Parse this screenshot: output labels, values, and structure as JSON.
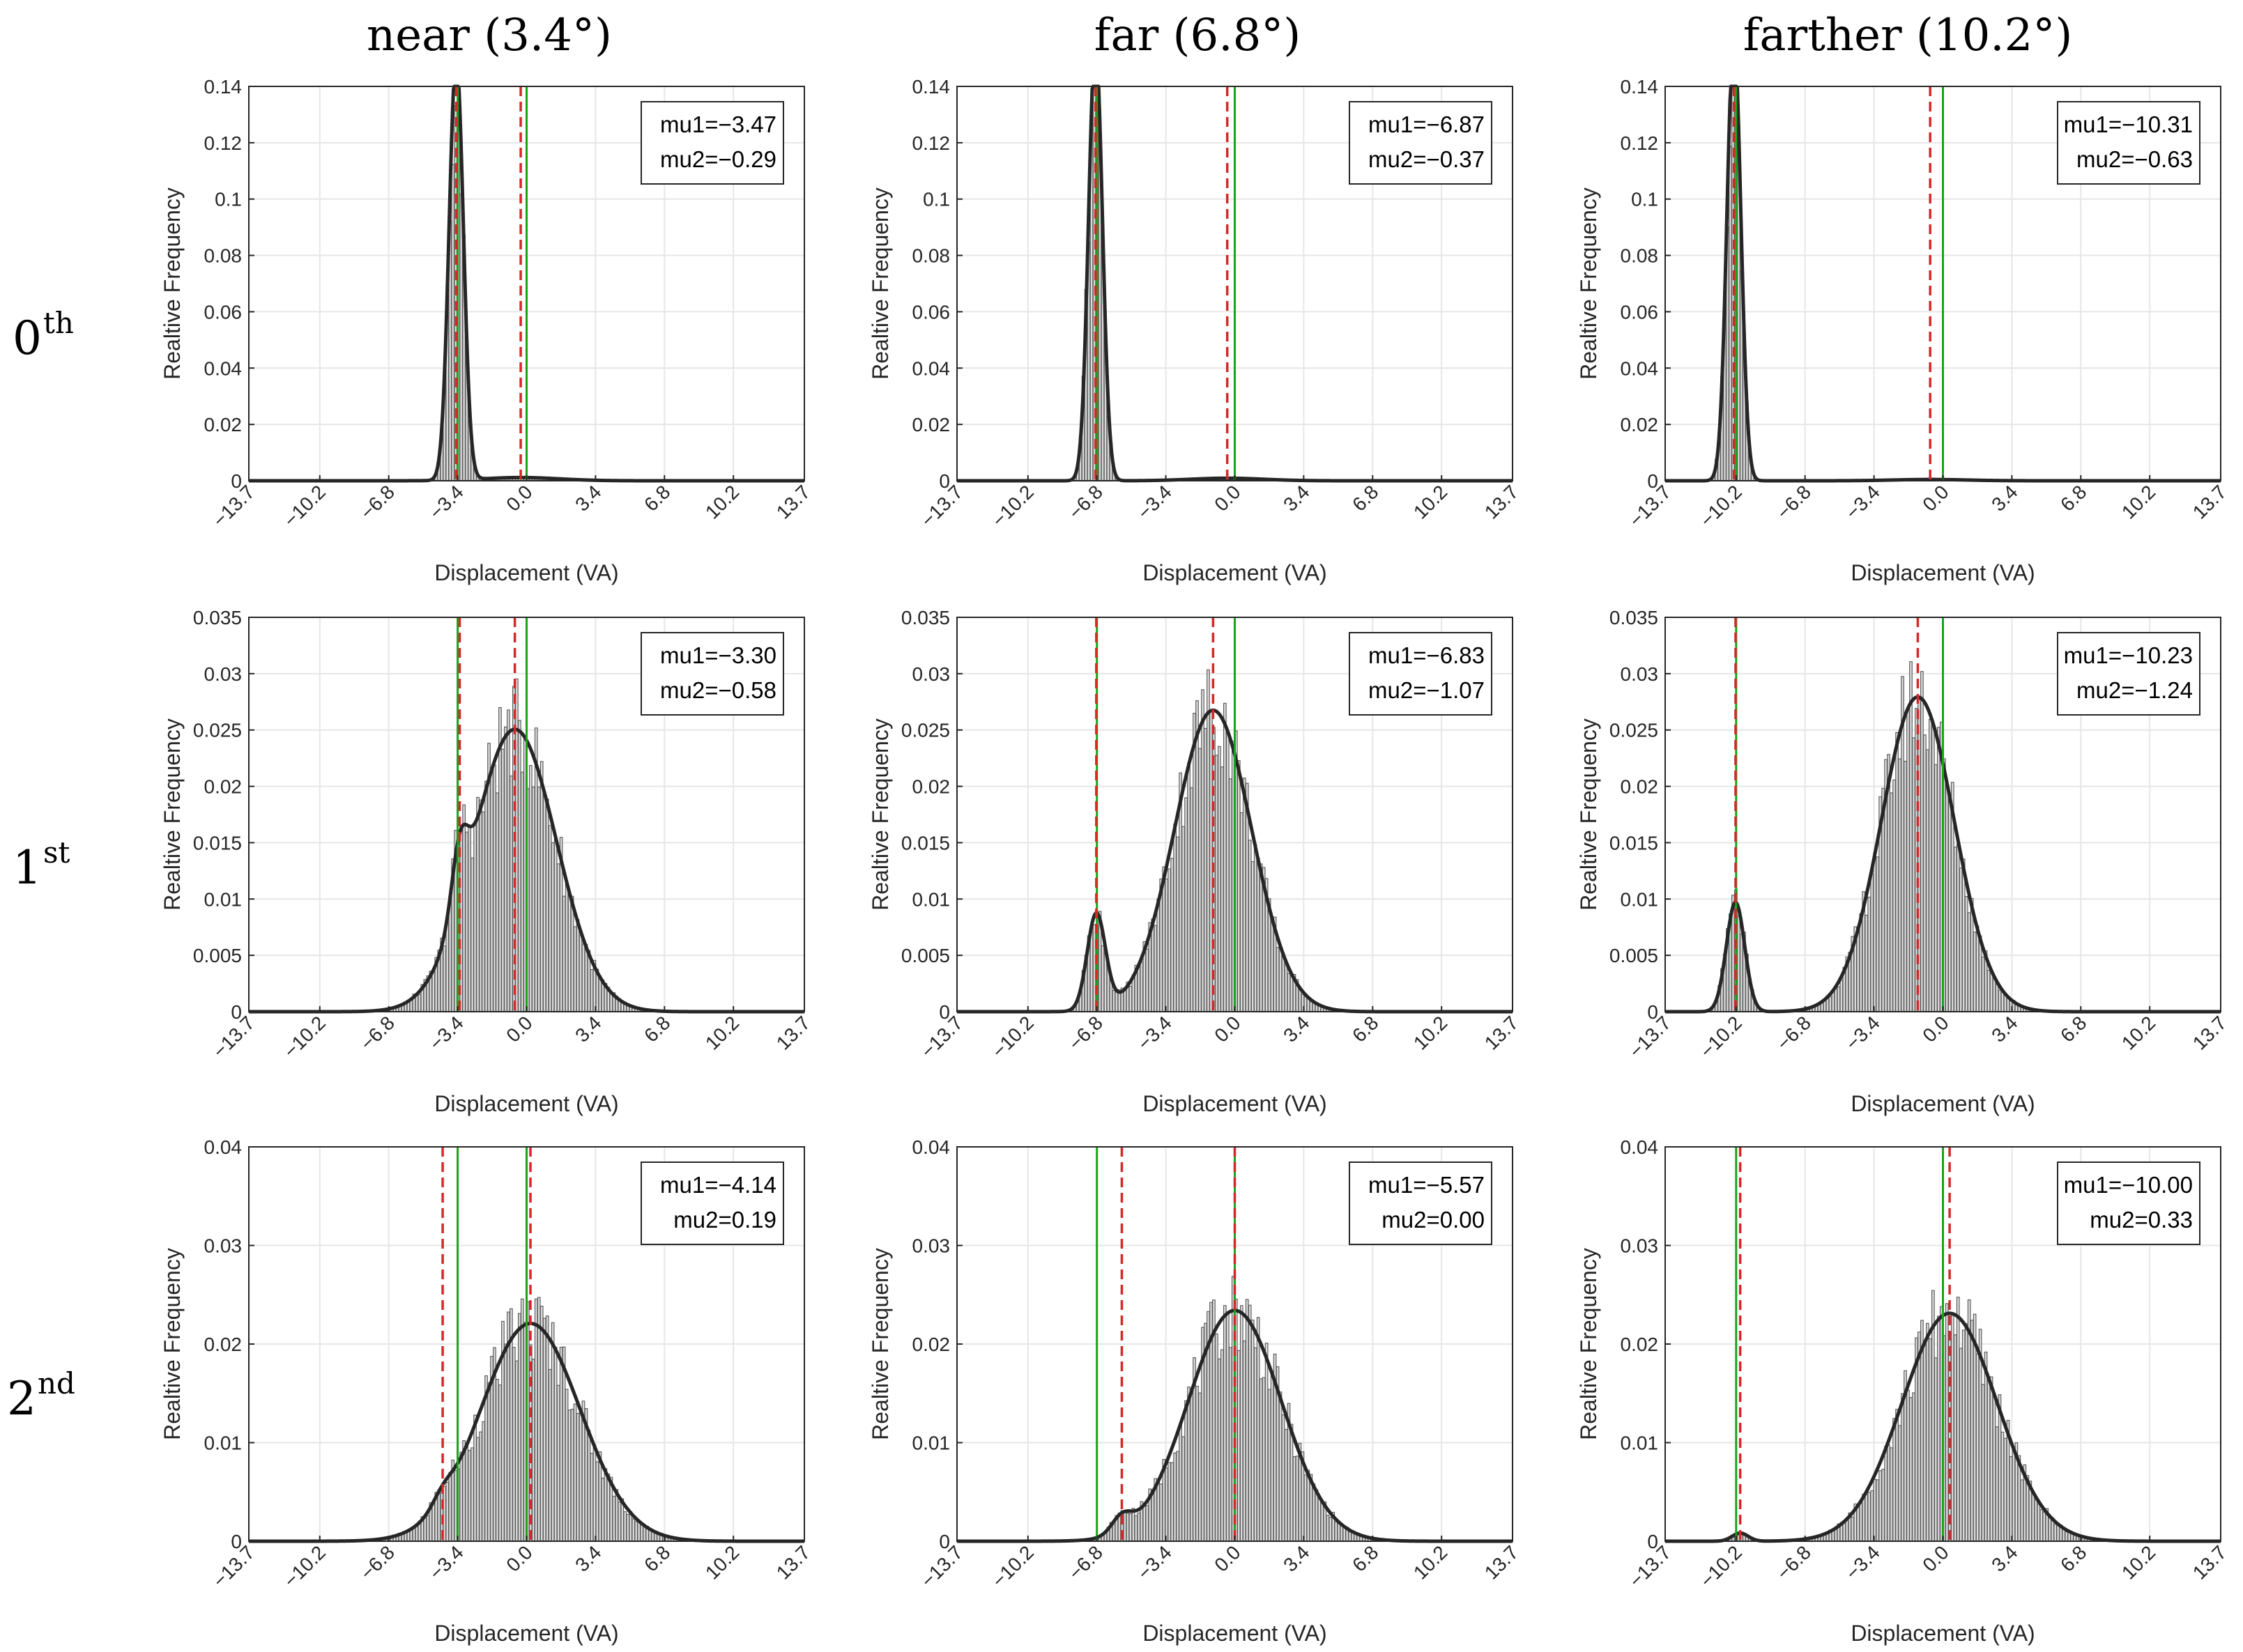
{
  "figure": {
    "column_titles": [
      "near (3.4°)",
      "far (6.8°)",
      "farther (10.2°)"
    ],
    "row_labels": [
      {
        "base": "0",
        "sup": "th"
      },
      {
        "base": "1",
        "sup": "st"
      },
      {
        "base": "2",
        "sup": "nd"
      }
    ],
    "colors": {
      "histogram_fill": "#d9d9d9",
      "histogram_edge": "#555555",
      "fit_line": "#262626",
      "mu_line": "#d62728",
      "target_line": "#1aa31a",
      "grid": "#e6e6e6"
    }
  },
  "chart_data": [
    {
      "type": "bar",
      "row": 0,
      "col": 0,
      "xlabel": "Displacement (VA)",
      "ylabel": "Realtive Frequency",
      "xlim": [
        -13.7,
        13.7
      ],
      "ylim": [
        0,
        0.14
      ],
      "yticks": [
        0,
        0.02,
        0.04,
        0.06,
        0.08,
        0.1,
        0.12,
        0.14
      ],
      "ytick_labels": [
        "0",
        "0.02",
        "0.04",
        "0.06",
        "0.08",
        "0.1",
        "0.12",
        "0.14"
      ],
      "xticks": [
        -13.7,
        -10.2,
        -6.8,
        -3.4,
        0.0,
        3.4,
        6.8,
        10.2,
        13.7
      ],
      "xtick_labels": [
        "−13.7",
        "−10.2",
        "−6.8",
        "−3.4",
        "0.0",
        "3.4",
        "6.8",
        "10.2",
        "13.7"
      ],
      "legend": [
        "mu1=−3.47",
        "mu2=−0.29"
      ],
      "mu": [
        -3.47,
        -0.29
      ],
      "targets": [
        -3.4,
        0.0
      ],
      "fit": {
        "components": [
          {
            "w": 0.96,
            "mu": -3.47,
            "sigma": 0.35
          },
          {
            "w": 0.04,
            "mu": -0.29,
            "sigma": 1.9
          }
        ]
      }
    },
    {
      "type": "bar",
      "row": 0,
      "col": 1,
      "xlabel": "Displacement (VA)",
      "ylabel": "Realtive Frequency",
      "xlim": [
        -13.7,
        13.7
      ],
      "ylim": [
        0,
        0.14
      ],
      "yticks": [
        0,
        0.02,
        0.04,
        0.06,
        0.08,
        0.1,
        0.12,
        0.14
      ],
      "ytick_labels": [
        "0",
        "0.02",
        "0.04",
        "0.06",
        "0.08",
        "0.1",
        "0.12",
        "0.14"
      ],
      "xticks": [
        -13.7,
        -10.2,
        -6.8,
        -3.4,
        0.0,
        3.4,
        6.8,
        10.2,
        13.7
      ],
      "xtick_labels": [
        "−13.7",
        "−10.2",
        "−6.8",
        "−3.4",
        "0.0",
        "3.4",
        "6.8",
        "10.2",
        "13.7"
      ],
      "legend": [
        "mu1=−6.87",
        "mu2=−0.37"
      ],
      "mu": [
        -6.87,
        -0.37
      ],
      "targets": [
        -6.8,
        0.0
      ],
      "fit": {
        "components": [
          {
            "w": 0.97,
            "mu": -6.87,
            "sigma": 0.34
          },
          {
            "w": 0.03,
            "mu": -0.37,
            "sigma": 1.8
          }
        ]
      }
    },
    {
      "type": "bar",
      "row": 0,
      "col": 2,
      "xlabel": "Displacement (VA)",
      "ylabel": "Realtive Frequency",
      "xlim": [
        -13.7,
        13.7
      ],
      "ylim": [
        0,
        0.14
      ],
      "yticks": [
        0,
        0.02,
        0.04,
        0.06,
        0.08,
        0.1,
        0.12,
        0.14
      ],
      "ytick_labels": [
        "0",
        "0.02",
        "0.04",
        "0.06",
        "0.08",
        "0.1",
        "0.12",
        "0.14"
      ],
      "xticks": [
        -13.7,
        -10.2,
        -6.8,
        -3.4,
        0.0,
        3.4,
        6.8,
        10.2,
        13.7
      ],
      "xtick_labels": [
        "−13.7",
        "−10.2",
        "−6.8",
        "−3.4",
        "0.0",
        "3.4",
        "6.8",
        "10.2",
        "13.7"
      ],
      "legend": [
        "mu1=−10.31",
        "mu2=−0.63"
      ],
      "mu": [
        -10.31,
        -0.63
      ],
      "targets": [
        -10.2,
        0.0
      ],
      "fit": {
        "components": [
          {
            "w": 0.985,
            "mu": -10.31,
            "sigma": 0.34
          },
          {
            "w": 0.015,
            "mu": -0.63,
            "sigma": 1.8
          }
        ]
      }
    },
    {
      "type": "bar",
      "row": 1,
      "col": 0,
      "xlabel": "Displacement (VA)",
      "ylabel": "Realtive Frequency",
      "xlim": [
        -13.7,
        13.7
      ],
      "ylim": [
        0,
        0.035
      ],
      "yticks": [
        0,
        0.005,
        0.01,
        0.015,
        0.02,
        0.025,
        0.03,
        0.035
      ],
      "ytick_labels": [
        "0",
        "0.005",
        "0.01",
        "0.015",
        "0.02",
        "0.025",
        "0.03",
        "0.035"
      ],
      "xticks": [
        -13.7,
        -10.2,
        -6.8,
        -3.4,
        0.0,
        3.4,
        6.8,
        10.2,
        13.7
      ],
      "xtick_labels": [
        "−13.7",
        "−10.2",
        "−6.8",
        "−3.4",
        "0.0",
        "3.4",
        "6.8",
        "10.2",
        "13.7"
      ],
      "legend": [
        "mu1=−3.30",
        "mu2=−0.58"
      ],
      "mu": [
        -3.3,
        -0.58
      ],
      "targets": [
        -3.4,
        0.0
      ],
      "fit": {
        "components": [
          {
            "w": 0.04,
            "mu": -3.3,
            "sigma": 0.4
          },
          {
            "w": 0.94,
            "mu": -0.58,
            "sigma": 2.05
          }
        ]
      }
    },
    {
      "type": "bar",
      "row": 1,
      "col": 1,
      "xlabel": "Displacement (VA)",
      "ylabel": "Realtive Frequency",
      "xlim": [
        -13.7,
        13.7
      ],
      "ylim": [
        0,
        0.035
      ],
      "yticks": [
        0,
        0.005,
        0.01,
        0.015,
        0.02,
        0.025,
        0.03,
        0.035
      ],
      "ytick_labels": [
        "0",
        "0.005",
        "0.01",
        "0.015",
        "0.02",
        "0.025",
        "0.03",
        "0.035"
      ],
      "xticks": [
        -13.7,
        -10.2,
        -6.8,
        -3.4,
        0.0,
        3.4,
        6.8,
        10.2,
        13.7
      ],
      "xtick_labels": [
        "−13.7",
        "−10.2",
        "−6.8",
        "−3.4",
        "0.0",
        "3.4",
        "6.8",
        "10.2",
        "13.7"
      ],
      "legend": [
        "mu1=−6.83",
        "mu2=−1.07"
      ],
      "mu": [
        -6.83,
        -1.07
      ],
      "targets": [
        -6.8,
        0.0
      ],
      "fit": {
        "components": [
          {
            "w": 0.07,
            "mu": -6.83,
            "sigma": 0.45
          },
          {
            "w": 0.93,
            "mu": -1.07,
            "sigma": 1.9
          }
        ]
      }
    },
    {
      "type": "bar",
      "row": 1,
      "col": 2,
      "xlabel": "Displacement (VA)",
      "ylabel": "Realtive Frequency",
      "xlim": [
        -13.7,
        13.7
      ],
      "ylim": [
        0,
        0.035
      ],
      "yticks": [
        0,
        0.005,
        0.01,
        0.015,
        0.02,
        0.025,
        0.03,
        0.035
      ],
      "ytick_labels": [
        "0",
        "0.005",
        "0.01",
        "0.015",
        "0.02",
        "0.025",
        "0.03",
        "0.035"
      ],
      "xticks": [
        -13.7,
        -10.2,
        -6.8,
        -3.4,
        0.0,
        3.4,
        6.8,
        10.2,
        13.7
      ],
      "xtick_labels": [
        "−13.7",
        "−10.2",
        "−6.8",
        "−3.4",
        "0.0",
        "3.4",
        "6.8",
        "10.2",
        "13.7"
      ],
      "legend": [
        "mu1=−10.23",
        "mu2=−1.24"
      ],
      "mu": [
        -10.23,
        -1.24
      ],
      "targets": [
        -10.2,
        0.0
      ],
      "fit": {
        "components": [
          {
            "w": 0.08,
            "mu": -10.23,
            "sigma": 0.45
          },
          {
            "w": 0.92,
            "mu": -1.24,
            "sigma": 1.8
          }
        ]
      }
    },
    {
      "type": "bar",
      "row": 2,
      "col": 0,
      "xlabel": "Displacement (VA)",
      "ylabel": "Realtive Frequency",
      "xlim": [
        -13.7,
        13.7
      ],
      "ylim": [
        0,
        0.04
      ],
      "yticks": [
        0,
        0.01,
        0.02,
        0.03,
        0.04
      ],
      "ytick_labels": [
        "0",
        "0.01",
        "0.02",
        "0.03",
        "0.04"
      ],
      "xticks": [
        -13.7,
        -10.2,
        -6.8,
        -3.4,
        0.0,
        3.4,
        6.8,
        10.2,
        13.7
      ],
      "xtick_labels": [
        "−13.7",
        "−10.2",
        "−6.8",
        "−3.4",
        "0.0",
        "3.4",
        "6.8",
        "10.2",
        "13.7"
      ],
      "legend": [
        "mu1=−4.14",
        "mu2=0.19"
      ],
      "mu": [
        -4.14,
        0.19
      ],
      "targets": [
        -3.4,
        0.0
      ],
      "fit": {
        "components": [
          {
            "w": 0.01,
            "mu": -4.14,
            "sigma": 0.5
          },
          {
            "w": 0.99,
            "mu": 0.19,
            "sigma": 2.45
          }
        ]
      }
    },
    {
      "type": "bar",
      "row": 2,
      "col": 1,
      "xlabel": "Displacement (VA)",
      "ylabel": "Realtive Frequency",
      "xlim": [
        -13.7,
        13.7
      ],
      "ylim": [
        0,
        0.04
      ],
      "yticks": [
        0,
        0.01,
        0.02,
        0.03,
        0.04
      ],
      "ytick_labels": [
        "0",
        "0.01",
        "0.02",
        "0.03",
        "0.04"
      ],
      "xticks": [
        -13.7,
        -10.2,
        -6.8,
        -3.4,
        0.0,
        3.4,
        6.8,
        10.2,
        13.7
      ],
      "xtick_labels": [
        "−13.7",
        "−10.2",
        "−6.8",
        "−3.4",
        "0.0",
        "3.4",
        "6.8",
        "10.2",
        "13.7"
      ],
      "legend": [
        "mu1=−5.57",
        "mu2=0.00"
      ],
      "mu": [
        -5.57,
        0.0
      ],
      "targets": [
        -6.8,
        0.0
      ],
      "fit": {
        "components": [
          {
            "w": 0.015,
            "mu": -5.57,
            "sigma": 0.5
          },
          {
            "w": 0.985,
            "mu": 0.0,
            "sigma": 2.3
          }
        ]
      }
    },
    {
      "type": "bar",
      "row": 2,
      "col": 2,
      "xlabel": "Displacement (VA)",
      "ylabel": "Realtive Frequency",
      "xlim": [
        -13.7,
        13.7
      ],
      "ylim": [
        0,
        0.04
      ],
      "yticks": [
        0,
        0.01,
        0.02,
        0.03,
        0.04
      ],
      "ytick_labels": [
        "0",
        "0.01",
        "0.02",
        "0.03",
        "0.04"
      ],
      "xticks": [
        -13.7,
        -10.2,
        -6.8,
        -3.4,
        0.0,
        3.4,
        6.8,
        10.2,
        13.7
      ],
      "xtick_labels": [
        "−13.7",
        "−10.2",
        "−6.8",
        "−3.4",
        "0.0",
        "3.4",
        "6.8",
        "10.2",
        "13.7"
      ],
      "legend": [
        "mu1=−10.00",
        "mu2=0.33"
      ],
      "mu": [
        -10.0,
        0.33
      ],
      "targets": [
        -10.2,
        0.0
      ],
      "fit": {
        "components": [
          {
            "w": 0.006,
            "mu": -10.0,
            "sigma": 0.4
          },
          {
            "w": 0.994,
            "mu": 0.33,
            "sigma": 2.35
          }
        ]
      }
    }
  ]
}
